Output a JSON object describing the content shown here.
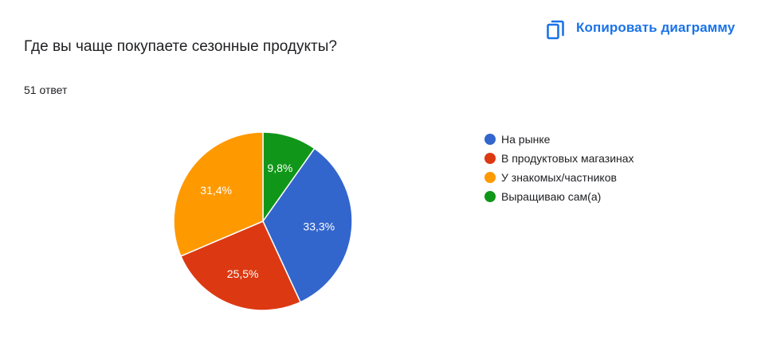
{
  "header": {
    "copy_button_label": "Копировать диаграмму",
    "copy_icon": "copy-icon",
    "accent_color": "#1a73e8"
  },
  "question": {
    "title": "Где вы чаще покупаете сезонные продукты?",
    "response_count": "51 ответ"
  },
  "chart_data": {
    "type": "pie",
    "categories": [
      "На рынке",
      "В продуктовых магазинах",
      "У знакомых/частников",
      "Выращиваю сам(а)"
    ],
    "values": [
      33.3,
      25.5,
      31.4,
      9.8
    ],
    "data_labels": [
      "33,3%",
      "25,5%",
      "31,4%",
      "9,8%"
    ],
    "colors": [
      "#3366cc",
      "#dc3912",
      "#ff9900",
      "#109618"
    ],
    "legend_position": "right"
  }
}
